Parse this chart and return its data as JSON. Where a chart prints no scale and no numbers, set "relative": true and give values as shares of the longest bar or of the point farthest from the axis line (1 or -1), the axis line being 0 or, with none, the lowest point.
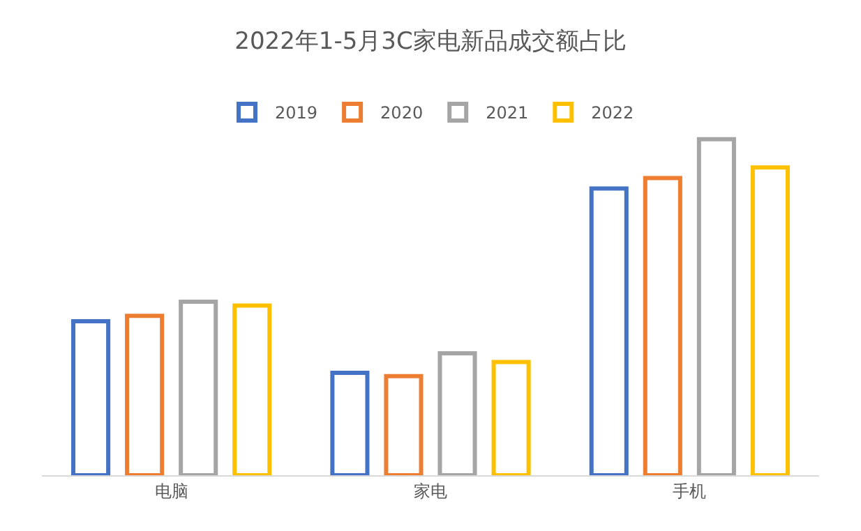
{
  "chart_data": {
    "type": "bar",
    "title": "2022年1-5月3C家电新品成交额占比",
    "relative": true,
    "legend": "top",
    "categories": [
      "电脑",
      "家电",
      "手机"
    ],
    "series": [
      {
        "name": "2019",
        "color": "#4472c4",
        "values": [
          0.458,
          0.305,
          0.853
        ]
      },
      {
        "name": "2020",
        "color": "#ed7d31",
        "values": [
          0.474,
          0.295,
          0.884
        ]
      },
      {
        "name": "2021",
        "color": "#a5a5a5",
        "values": [
          0.516,
          0.363,
          1.0
        ]
      },
      {
        "name": "2022",
        "color": "#ffc000",
        "values": [
          0.505,
          0.337,
          0.916
        ]
      }
    ]
  }
}
